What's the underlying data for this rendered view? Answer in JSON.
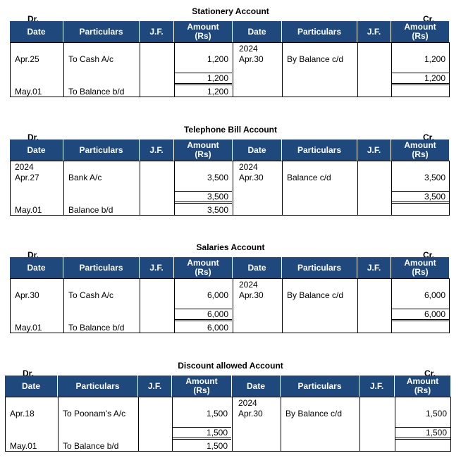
{
  "dr_label": "Dr.",
  "cr_label": "Cr.",
  "headers": [
    "Date",
    "Particulars",
    "J.F.",
    "Amount\n(Rs)",
    "Date",
    "Particulars",
    "J.F.",
    "Amount\n(Rs)"
  ],
  "header_color": "#1f497d",
  "accounts": [
    {
      "title": "Stationery Account",
      "debit": {
        "year": "",
        "date": "Apr.25",
        "particulars": "To Cash A/c",
        "amount": "1,200",
        "total": "1,200",
        "bd_date": "May.01",
        "bd_particulars": "To Balance b/d",
        "bd_amount": "1,200"
      },
      "credit": {
        "year": "2024",
        "date": "Apr.30",
        "particulars": "By Balance c/d",
        "amount": "1,200",
        "total": "1,200"
      }
    },
    {
      "title": "Telephone Bill Account",
      "debit": {
        "year": "2024",
        "date": "Apr.27",
        "particulars": "Bank A/c",
        "amount": "3,500",
        "total": "3,500",
        "bd_date": "May.01",
        "bd_particulars": "Balance b/d",
        "bd_amount": "3,500"
      },
      "credit": {
        "year": "2024",
        "date": "Apr.30",
        "particulars": "Balance c/d",
        "amount": "3,500",
        "total": "3,500"
      }
    },
    {
      "title": "Salaries Account",
      "debit": {
        "year": "",
        "date": "Apr.30",
        "particulars": "To Cash A/c",
        "amount": "6,000",
        "total": "6,000",
        "bd_date": "May.01",
        "bd_particulars": "To Balance b/d",
        "bd_amount": "6,000"
      },
      "credit": {
        "year": "2024",
        "date": "Apr.30",
        "particulars": "By Balance c/d",
        "amount": "6,000",
        "total": "6,000"
      }
    },
    {
      "title": "Discount allowed Account",
      "debit": {
        "year": "",
        "date": "Apr.18",
        "particulars": "To Poonam’s A/c",
        "amount": "1,500",
        "total": "1,500",
        "bd_date": "May.01",
        "bd_particulars": "To Balance b/d",
        "bd_amount": "1,500"
      },
      "credit": {
        "year": "2024",
        "date": "Apr.30",
        "particulars": "By Balance c/d",
        "amount": "1,500",
        "total": "1,500"
      }
    }
  ]
}
